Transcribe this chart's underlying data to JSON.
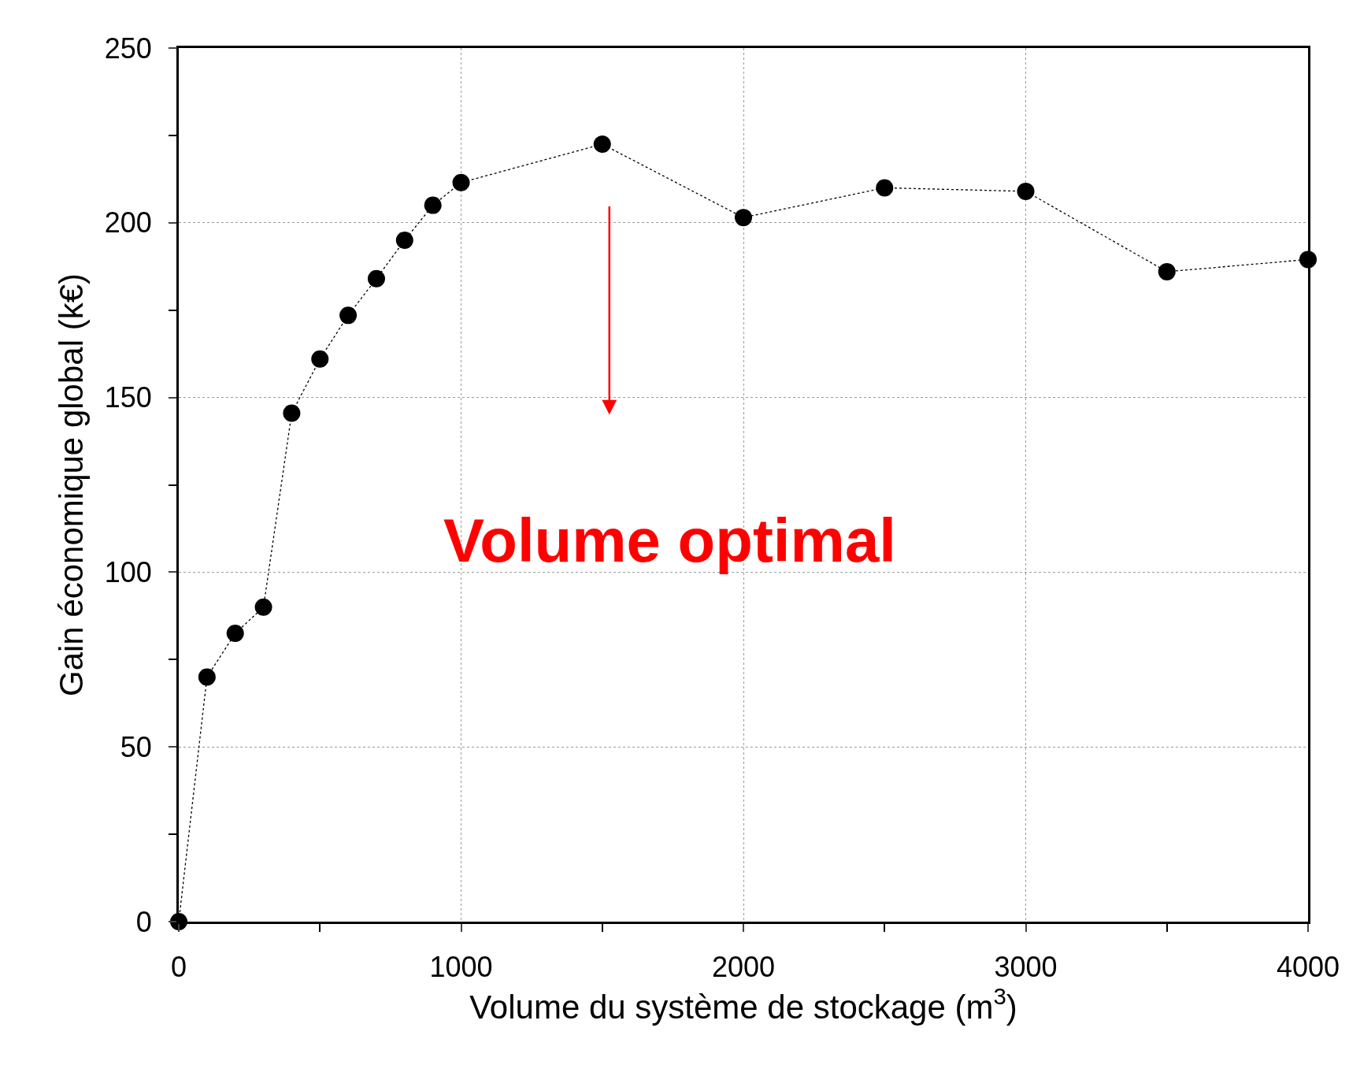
{
  "chart_data": {
    "type": "line",
    "xlabel": "Volume du système de stockage (m$^{3}$)",
    "ylabel": "Gain économique global (k€)",
    "x": [
      0,
      100,
      200,
      300,
      400,
      500,
      600,
      700,
      800,
      900,
      1000,
      1500,
      2000,
      2500,
      3000,
      3500,
      4000
    ],
    "series": [
      {
        "color": "#000000",
        "values": [
          0,
          70,
          82.5,
          90,
          145.5,
          161,
          173.5,
          184,
          195,
          205,
          211.5,
          222.5,
          201.5,
          210,
          209,
          186,
          189.5
        ]
      }
    ],
    "xlim": [
      0,
      4000
    ],
    "ylim": [
      0,
      250
    ],
    "xticks": [
      0,
      {
        "value": 500,
        "label": null
      },
      1000,
      {
        "value": 1500,
        "label": null
      },
      2000,
      {
        "value": 2500,
        "label": null
      },
      3000,
      {
        "value": 3500,
        "label": null
      },
      4000
    ],
    "yticks": [
      0,
      {
        "value": 25,
        "label": null
      },
      50,
      {
        "value": 75,
        "label": null
      },
      100,
      {
        "value": 125,
        "label": null
      },
      150,
      {
        "value": 175,
        "label": null
      },
      200,
      {
        "value": 225,
        "label": null
      },
      250
    ],
    "grid": true,
    "marker": "circle",
    "line_style": "dotted",
    "annotations": [
      "Volume optimal"
    ]
  }
}
